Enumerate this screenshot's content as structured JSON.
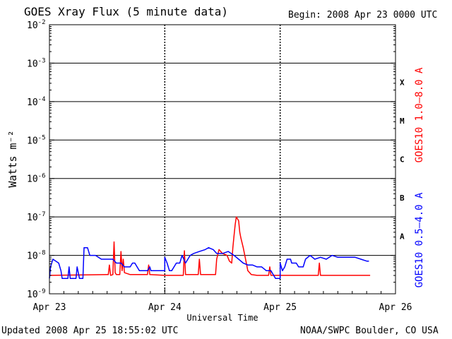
{
  "header": {
    "title": "GOES Xray Flux (5 minute data)",
    "begin": "Begin:  2008 Apr 23 0000 UTC"
  },
  "footer": {
    "updated": "Updated 2008 Apr 25 18:55:02 UTC",
    "credit": "NOAA/SWPC Boulder, CO USA"
  },
  "chart_data": {
    "type": "line",
    "title": "GOES Xray Flux (5 minute data)",
    "xlabel": "Universal Time",
    "ylabel": "Watts m⁻²",
    "y_scale": "log",
    "ylim": [
      1e-09,
      0.01
    ],
    "y_tick_exponents": [
      -2,
      -3,
      -4,
      -5,
      -6,
      -7,
      -8,
      -9
    ],
    "x_tick_labels": [
      "Apr 23",
      "Apr 24",
      "Apr 25",
      "Apr 26"
    ],
    "xlim_days": [
      0,
      3
    ],
    "flare_classes": [
      {
        "label": "A",
        "exp": -8
      },
      {
        "label": "B",
        "exp": -7
      },
      {
        "label": "C",
        "exp": -6
      },
      {
        "label": "M",
        "exp": -5
      },
      {
        "label": "X",
        "exp": -4
      }
    ],
    "grid": true,
    "series": [
      {
        "name": "GOES10 1.0–8.0 A",
        "color": "#ff0000",
        "points": [
          [
            0.0,
            -8.52
          ],
          [
            0.5,
            -8.5
          ],
          [
            0.51,
            -8.5
          ],
          [
            0.52,
            -8.25
          ],
          [
            0.53,
            -8.52
          ],
          [
            0.55,
            -8.5
          ],
          [
            0.56,
            -7.65
          ],
          [
            0.57,
            -8.45
          ],
          [
            0.58,
            -8.5
          ],
          [
            0.61,
            -8.5
          ],
          [
            0.62,
            -7.9
          ],
          [
            0.63,
            -8.4
          ],
          [
            0.64,
            -8.1
          ],
          [
            0.65,
            -8.45
          ],
          [
            0.7,
            -8.5
          ],
          [
            0.85,
            -8.5
          ],
          [
            0.86,
            -8.25
          ],
          [
            0.87,
            -8.5
          ],
          [
            1.0,
            -8.52
          ],
          [
            1.16,
            -8.52
          ],
          [
            1.17,
            -7.88
          ],
          [
            1.18,
            -8.5
          ],
          [
            1.29,
            -8.5
          ],
          [
            1.3,
            -8.1
          ],
          [
            1.31,
            -8.5
          ],
          [
            1.44,
            -8.5
          ],
          [
            1.45,
            -8.1
          ],
          [
            1.47,
            -7.85
          ],
          [
            1.5,
            -7.95
          ],
          [
            1.54,
            -8.0
          ],
          [
            1.56,
            -8.15
          ],
          [
            1.58,
            -8.2
          ],
          [
            1.59,
            -7.8
          ],
          [
            1.6,
            -7.5
          ],
          [
            1.61,
            -7.2
          ],
          [
            1.62,
            -7.0
          ],
          [
            1.64,
            -7.1
          ],
          [
            1.65,
            -7.4
          ],
          [
            1.66,
            -7.55
          ],
          [
            1.68,
            -7.8
          ],
          [
            1.7,
            -8.1
          ],
          [
            1.72,
            -8.4
          ],
          [
            1.75,
            -8.5
          ],
          [
            1.8,
            -8.52
          ],
          [
            1.9,
            -8.52
          ],
          [
            1.91,
            -8.3
          ],
          [
            1.92,
            -8.52
          ],
          [
            2.0,
            -8.52
          ],
          [
            2.3,
            -8.52
          ],
          [
            2.33,
            -8.52
          ],
          [
            2.34,
            -8.2
          ],
          [
            2.35,
            -8.52
          ],
          [
            2.5,
            -8.52
          ],
          [
            2.7,
            -8.52
          ],
          [
            2.78,
            -8.52
          ]
        ]
      },
      {
        "name": "GOES10 0.5–4.0 A",
        "color": "#0000ff",
        "points": [
          [
            0.0,
            -8.6
          ],
          [
            0.01,
            -8.3
          ],
          [
            0.03,
            -8.1
          ],
          [
            0.08,
            -8.2
          ],
          [
            0.1,
            -8.4
          ],
          [
            0.11,
            -8.6
          ],
          [
            0.16,
            -8.6
          ],
          [
            0.17,
            -8.3
          ],
          [
            0.18,
            -8.6
          ],
          [
            0.23,
            -8.6
          ],
          [
            0.24,
            -8.3
          ],
          [
            0.26,
            -8.6
          ],
          [
            0.29,
            -8.6
          ],
          [
            0.3,
            -7.8
          ],
          [
            0.33,
            -7.8
          ],
          [
            0.35,
            -8.0
          ],
          [
            0.4,
            -8.0
          ],
          [
            0.45,
            -8.1
          ],
          [
            0.55,
            -8.1
          ],
          [
            0.58,
            -8.2
          ],
          [
            0.62,
            -8.2
          ],
          [
            0.65,
            -8.3
          ],
          [
            0.7,
            -8.3
          ],
          [
            0.72,
            -8.2
          ],
          [
            0.74,
            -8.2
          ],
          [
            0.76,
            -8.3
          ],
          [
            0.78,
            -8.4
          ],
          [
            0.85,
            -8.4
          ],
          [
            0.87,
            -8.3
          ],
          [
            0.88,
            -8.4
          ],
          [
            0.92,
            -8.4
          ],
          [
            0.96,
            -8.4
          ],
          [
            1.0,
            -8.4
          ],
          [
            1.0,
            -8.05
          ],
          [
            1.02,
            -8.2
          ],
          [
            1.04,
            -8.4
          ],
          [
            1.06,
            -8.4
          ],
          [
            1.1,
            -8.2
          ],
          [
            1.13,
            -8.2
          ],
          [
            1.15,
            -8.0
          ],
          [
            1.18,
            -8.2
          ],
          [
            1.2,
            -8.1
          ],
          [
            1.22,
            -8.0
          ],
          [
            1.25,
            -7.95
          ],
          [
            1.3,
            -7.9
          ],
          [
            1.35,
            -7.85
          ],
          [
            1.38,
            -7.8
          ],
          [
            1.42,
            -7.85
          ],
          [
            1.45,
            -7.95
          ],
          [
            1.5,
            -7.95
          ],
          [
            1.55,
            -7.9
          ],
          [
            1.6,
            -8.0
          ],
          [
            1.64,
            -8.1
          ],
          [
            1.68,
            -8.2
          ],
          [
            1.72,
            -8.25
          ],
          [
            1.76,
            -8.25
          ],
          [
            1.8,
            -8.3
          ],
          [
            1.84,
            -8.3
          ],
          [
            1.88,
            -8.4
          ],
          [
            1.92,
            -8.4
          ],
          [
            1.96,
            -8.6
          ],
          [
            2.0,
            -8.6
          ],
          [
            2.0,
            -8.2
          ],
          [
            2.02,
            -8.4
          ],
          [
            2.04,
            -8.3
          ],
          [
            2.06,
            -8.1
          ],
          [
            2.09,
            -8.1
          ],
          [
            2.1,
            -8.2
          ],
          [
            2.14,
            -8.2
          ],
          [
            2.16,
            -8.3
          ],
          [
            2.2,
            -8.3
          ],
          [
            2.22,
            -8.1
          ],
          [
            2.26,
            -8.0
          ],
          [
            2.3,
            -8.1
          ],
          [
            2.35,
            -8.05
          ],
          [
            2.4,
            -8.1
          ],
          [
            2.45,
            -8.0
          ],
          [
            2.5,
            -8.05
          ],
          [
            2.55,
            -8.05
          ],
          [
            2.6,
            -8.05
          ],
          [
            2.65,
            -8.05
          ],
          [
            2.7,
            -8.1
          ],
          [
            2.75,
            -8.15
          ],
          [
            2.77,
            -8.15
          ]
        ]
      }
    ]
  }
}
